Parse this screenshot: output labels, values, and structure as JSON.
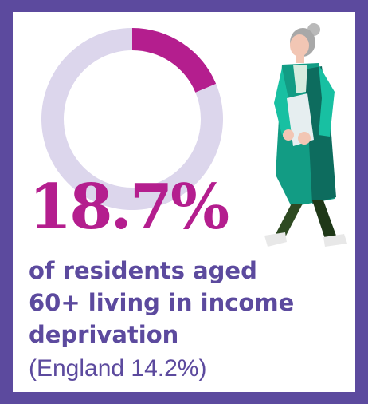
{
  "chart_data": {
    "type": "pie",
    "values": [
      18.7,
      81.3
    ],
    "value_label": "18.7%",
    "description": "of residents aged 60+ living in income deprivation",
    "comparison": "(England 14.2%)",
    "colors": {
      "highlight": "#b41e8e",
      "remainder": "#dcd6ec"
    }
  },
  "headline_lines": [
    "of residents aged",
    "60+ living in income",
    "deprivation"
  ],
  "comparison_label": "(England 14.2%)",
  "colors": {
    "frame": "#5c4a9e",
    "text": "#5c4a9e",
    "accent": "#b41e8e"
  },
  "illustration": {
    "icon": "elderly-woman-walking-illustration"
  }
}
